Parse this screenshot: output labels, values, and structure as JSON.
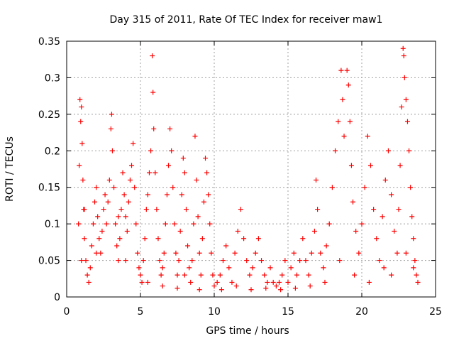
{
  "chart_data": {
    "type": "scatter",
    "title": "Day 315 of 2011, Rate Of TEC Index for receiver maw1",
    "xlabel": "GPS time / hours",
    "ylabel": "ROTI / TECUs",
    "xlim": [
      0,
      25
    ],
    "ylim": [
      0,
      0.35
    ],
    "x_ticks": [
      "0",
      "5",
      "10",
      "15",
      "20",
      "25"
    ],
    "y_ticks": [
      "0",
      "0.05",
      "0.1",
      "0.15",
      "0.2",
      "0.25",
      "0.3",
      "0.35"
    ],
    "grid": true,
    "legend": "none",
    "marker": "plus",
    "color": "#ff0000",
    "series": [
      {
        "points": [
          [
            0.8,
            0.1
          ],
          [
            0.85,
            0.18
          ],
          [
            0.9,
            0.27
          ],
          [
            0.95,
            0.24
          ],
          [
            1.0,
            0.26
          ],
          [
            1.05,
            0.21
          ],
          [
            1.1,
            0.16
          ],
          [
            1.15,
            0.12
          ],
          [
            1.2,
            0.08
          ],
          [
            1.3,
            0.05
          ],
          [
            1.4,
            0.03
          ],
          [
            1.5,
            0.02
          ],
          [
            1.6,
            0.04
          ],
          [
            1.7,
            0.07
          ],
          [
            1.8,
            0.1
          ],
          [
            1.9,
            0.13
          ],
          [
            2.0,
            0.15
          ],
          [
            2.1,
            0.11
          ],
          [
            2.2,
            0.08
          ],
          [
            2.3,
            0.06
          ],
          [
            2.4,
            0.09
          ],
          [
            2.5,
            0.12
          ],
          [
            2.6,
            0.14
          ],
          [
            2.7,
            0.1
          ],
          [
            2.8,
            0.13
          ],
          [
            2.9,
            0.16
          ],
          [
            3.0,
            0.23
          ],
          [
            3.05,
            0.25
          ],
          [
            3.1,
            0.2
          ],
          [
            3.2,
            0.15
          ],
          [
            3.3,
            0.1
          ],
          [
            3.4,
            0.07
          ],
          [
            3.5,
            0.05
          ],
          [
            3.6,
            0.08
          ],
          [
            3.7,
            0.12
          ],
          [
            3.8,
            0.17
          ],
          [
            3.9,
            0.14
          ],
          [
            4.0,
            0.11
          ],
          [
            4.1,
            0.09
          ],
          [
            4.2,
            0.13
          ],
          [
            4.3,
            0.16
          ],
          [
            4.4,
            0.18
          ],
          [
            4.5,
            0.21
          ],
          [
            4.6,
            0.15
          ],
          [
            4.7,
            0.1
          ],
          [
            4.8,
            0.06
          ],
          [
            4.9,
            0.04
          ],
          [
            5.0,
            0.03
          ],
          [
            5.1,
            0.02
          ],
          [
            5.2,
            0.05
          ],
          [
            5.3,
            0.08
          ],
          [
            5.4,
            0.12
          ],
          [
            5.5,
            0.14
          ],
          [
            5.6,
            0.17
          ],
          [
            5.7,
            0.2
          ],
          [
            5.8,
            0.33
          ],
          [
            5.85,
            0.28
          ],
          [
            5.9,
            0.23
          ],
          [
            6.0,
            0.17
          ],
          [
            6.1,
            0.12
          ],
          [
            6.2,
            0.08
          ],
          [
            6.3,
            0.05
          ],
          [
            6.4,
            0.03
          ],
          [
            6.5,
            0.04
          ],
          [
            6.6,
            0.06
          ],
          [
            6.7,
            0.1
          ],
          [
            6.8,
            0.14
          ],
          [
            6.9,
            0.18
          ],
          [
            7.0,
            0.23
          ],
          [
            7.1,
            0.2
          ],
          [
            7.2,
            0.15
          ],
          [
            7.3,
            0.1
          ],
          [
            7.4,
            0.06
          ],
          [
            7.5,
            0.03
          ],
          [
            7.6,
            0.05
          ],
          [
            7.7,
            0.09
          ],
          [
            7.8,
            0.14
          ],
          [
            7.9,
            0.19
          ],
          [
            8.0,
            0.17
          ],
          [
            8.1,
            0.12
          ],
          [
            8.2,
            0.07
          ],
          [
            8.3,
            0.04
          ],
          [
            8.4,
            0.02
          ],
          [
            8.5,
            0.05
          ],
          [
            8.6,
            0.1
          ],
          [
            8.7,
            0.22
          ],
          [
            8.8,
            0.16
          ],
          [
            8.9,
            0.11
          ],
          [
            9.0,
            0.06
          ],
          [
            9.1,
            0.03
          ],
          [
            9.2,
            0.08
          ],
          [
            9.3,
            0.13
          ],
          [
            9.4,
            0.19
          ],
          [
            9.5,
            0.17
          ],
          [
            9.6,
            0.14
          ],
          [
            9.7,
            0.1
          ],
          [
            9.8,
            0.06
          ],
          [
            9.9,
            0.03
          ],
          [
            10.0,
            0.015
          ],
          [
            10.2,
            0.02
          ],
          [
            10.4,
            0.03
          ],
          [
            10.6,
            0.05
          ],
          [
            10.8,
            0.07
          ],
          [
            11.0,
            0.04
          ],
          [
            11.2,
            0.02
          ],
          [
            11.4,
            0.06
          ],
          [
            11.6,
            0.09
          ],
          [
            11.8,
            0.12
          ],
          [
            12.0,
            0.08
          ],
          [
            12.2,
            0.05
          ],
          [
            12.4,
            0.03
          ],
          [
            12.6,
            0.04
          ],
          [
            12.8,
            0.06
          ],
          [
            13.0,
            0.08
          ],
          [
            13.2,
            0.05
          ],
          [
            13.4,
            0.03
          ],
          [
            13.6,
            0.02
          ],
          [
            13.8,
            0.04
          ],
          [
            14.0,
            0.02
          ],
          [
            14.2,
            0.015
          ],
          [
            14.4,
            0.02
          ],
          [
            14.6,
            0.03
          ],
          [
            14.8,
            0.05
          ],
          [
            15.0,
            0.02
          ],
          [
            15.2,
            0.04
          ],
          [
            15.4,
            0.06
          ],
          [
            15.6,
            0.03
          ],
          [
            15.8,
            0.05
          ],
          [
            16.0,
            0.08
          ],
          [
            16.2,
            0.05
          ],
          [
            16.4,
            0.03
          ],
          [
            16.6,
            0.06
          ],
          [
            16.8,
            0.09
          ],
          [
            16.9,
            0.16
          ],
          [
            17.0,
            0.12
          ],
          [
            17.2,
            0.06
          ],
          [
            17.4,
            0.04
          ],
          [
            17.6,
            0.07
          ],
          [
            17.8,
            0.1
          ],
          [
            18.0,
            0.15
          ],
          [
            18.2,
            0.2
          ],
          [
            18.4,
            0.24
          ],
          [
            18.6,
            0.31
          ],
          [
            18.7,
            0.27
          ],
          [
            18.8,
            0.22
          ],
          [
            19.0,
            0.31
          ],
          [
            19.1,
            0.29
          ],
          [
            19.2,
            0.24
          ],
          [
            19.3,
            0.18
          ],
          [
            19.4,
            0.13
          ],
          [
            19.6,
            0.09
          ],
          [
            19.8,
            0.06
          ],
          [
            20.0,
            0.1
          ],
          [
            20.2,
            0.15
          ],
          [
            20.4,
            0.22
          ],
          [
            20.6,
            0.18
          ],
          [
            20.8,
            0.12
          ],
          [
            21.0,
            0.08
          ],
          [
            21.2,
            0.05
          ],
          [
            21.4,
            0.11
          ],
          [
            21.6,
            0.16
          ],
          [
            21.8,
            0.2
          ],
          [
            22.0,
            0.14
          ],
          [
            22.2,
            0.09
          ],
          [
            22.4,
            0.06
          ],
          [
            22.5,
            0.12
          ],
          [
            22.6,
            0.18
          ],
          [
            22.7,
            0.26
          ],
          [
            22.8,
            0.34
          ],
          [
            22.85,
            0.33
          ],
          [
            22.9,
            0.3
          ],
          [
            23.0,
            0.27
          ],
          [
            23.1,
            0.24
          ],
          [
            23.2,
            0.2
          ],
          [
            23.3,
            0.15
          ],
          [
            23.4,
            0.11
          ],
          [
            23.5,
            0.08
          ],
          [
            23.6,
            0.05
          ],
          [
            23.7,
            0.03
          ],
          [
            23.8,
            0.02
          ],
          [
            1.0,
            0.05
          ],
          [
            1.2,
            0.12
          ],
          [
            2.0,
            0.06
          ],
          [
            3.5,
            0.11
          ],
          [
            4.0,
            0.05
          ],
          [
            5.5,
            0.02
          ],
          [
            6.5,
            0.015
          ],
          [
            7.5,
            0.012
          ],
          [
            8.0,
            0.03
          ],
          [
            9.0,
            0.01
          ],
          [
            10.5,
            0.01
          ],
          [
            11.5,
            0.015
          ],
          [
            12.5,
            0.01
          ],
          [
            13.5,
            0.012
          ],
          [
            14.5,
            0.01
          ],
          [
            15.5,
            0.012
          ],
          [
            16.5,
            0.015
          ],
          [
            17.5,
            0.02
          ],
          [
            18.5,
            0.05
          ],
          [
            19.5,
            0.03
          ],
          [
            20.5,
            0.02
          ],
          [
            21.5,
            0.04
          ],
          [
            22.0,
            0.03
          ],
          [
            23.0,
            0.06
          ],
          [
            23.5,
            0.04
          ]
        ]
      }
    ]
  }
}
